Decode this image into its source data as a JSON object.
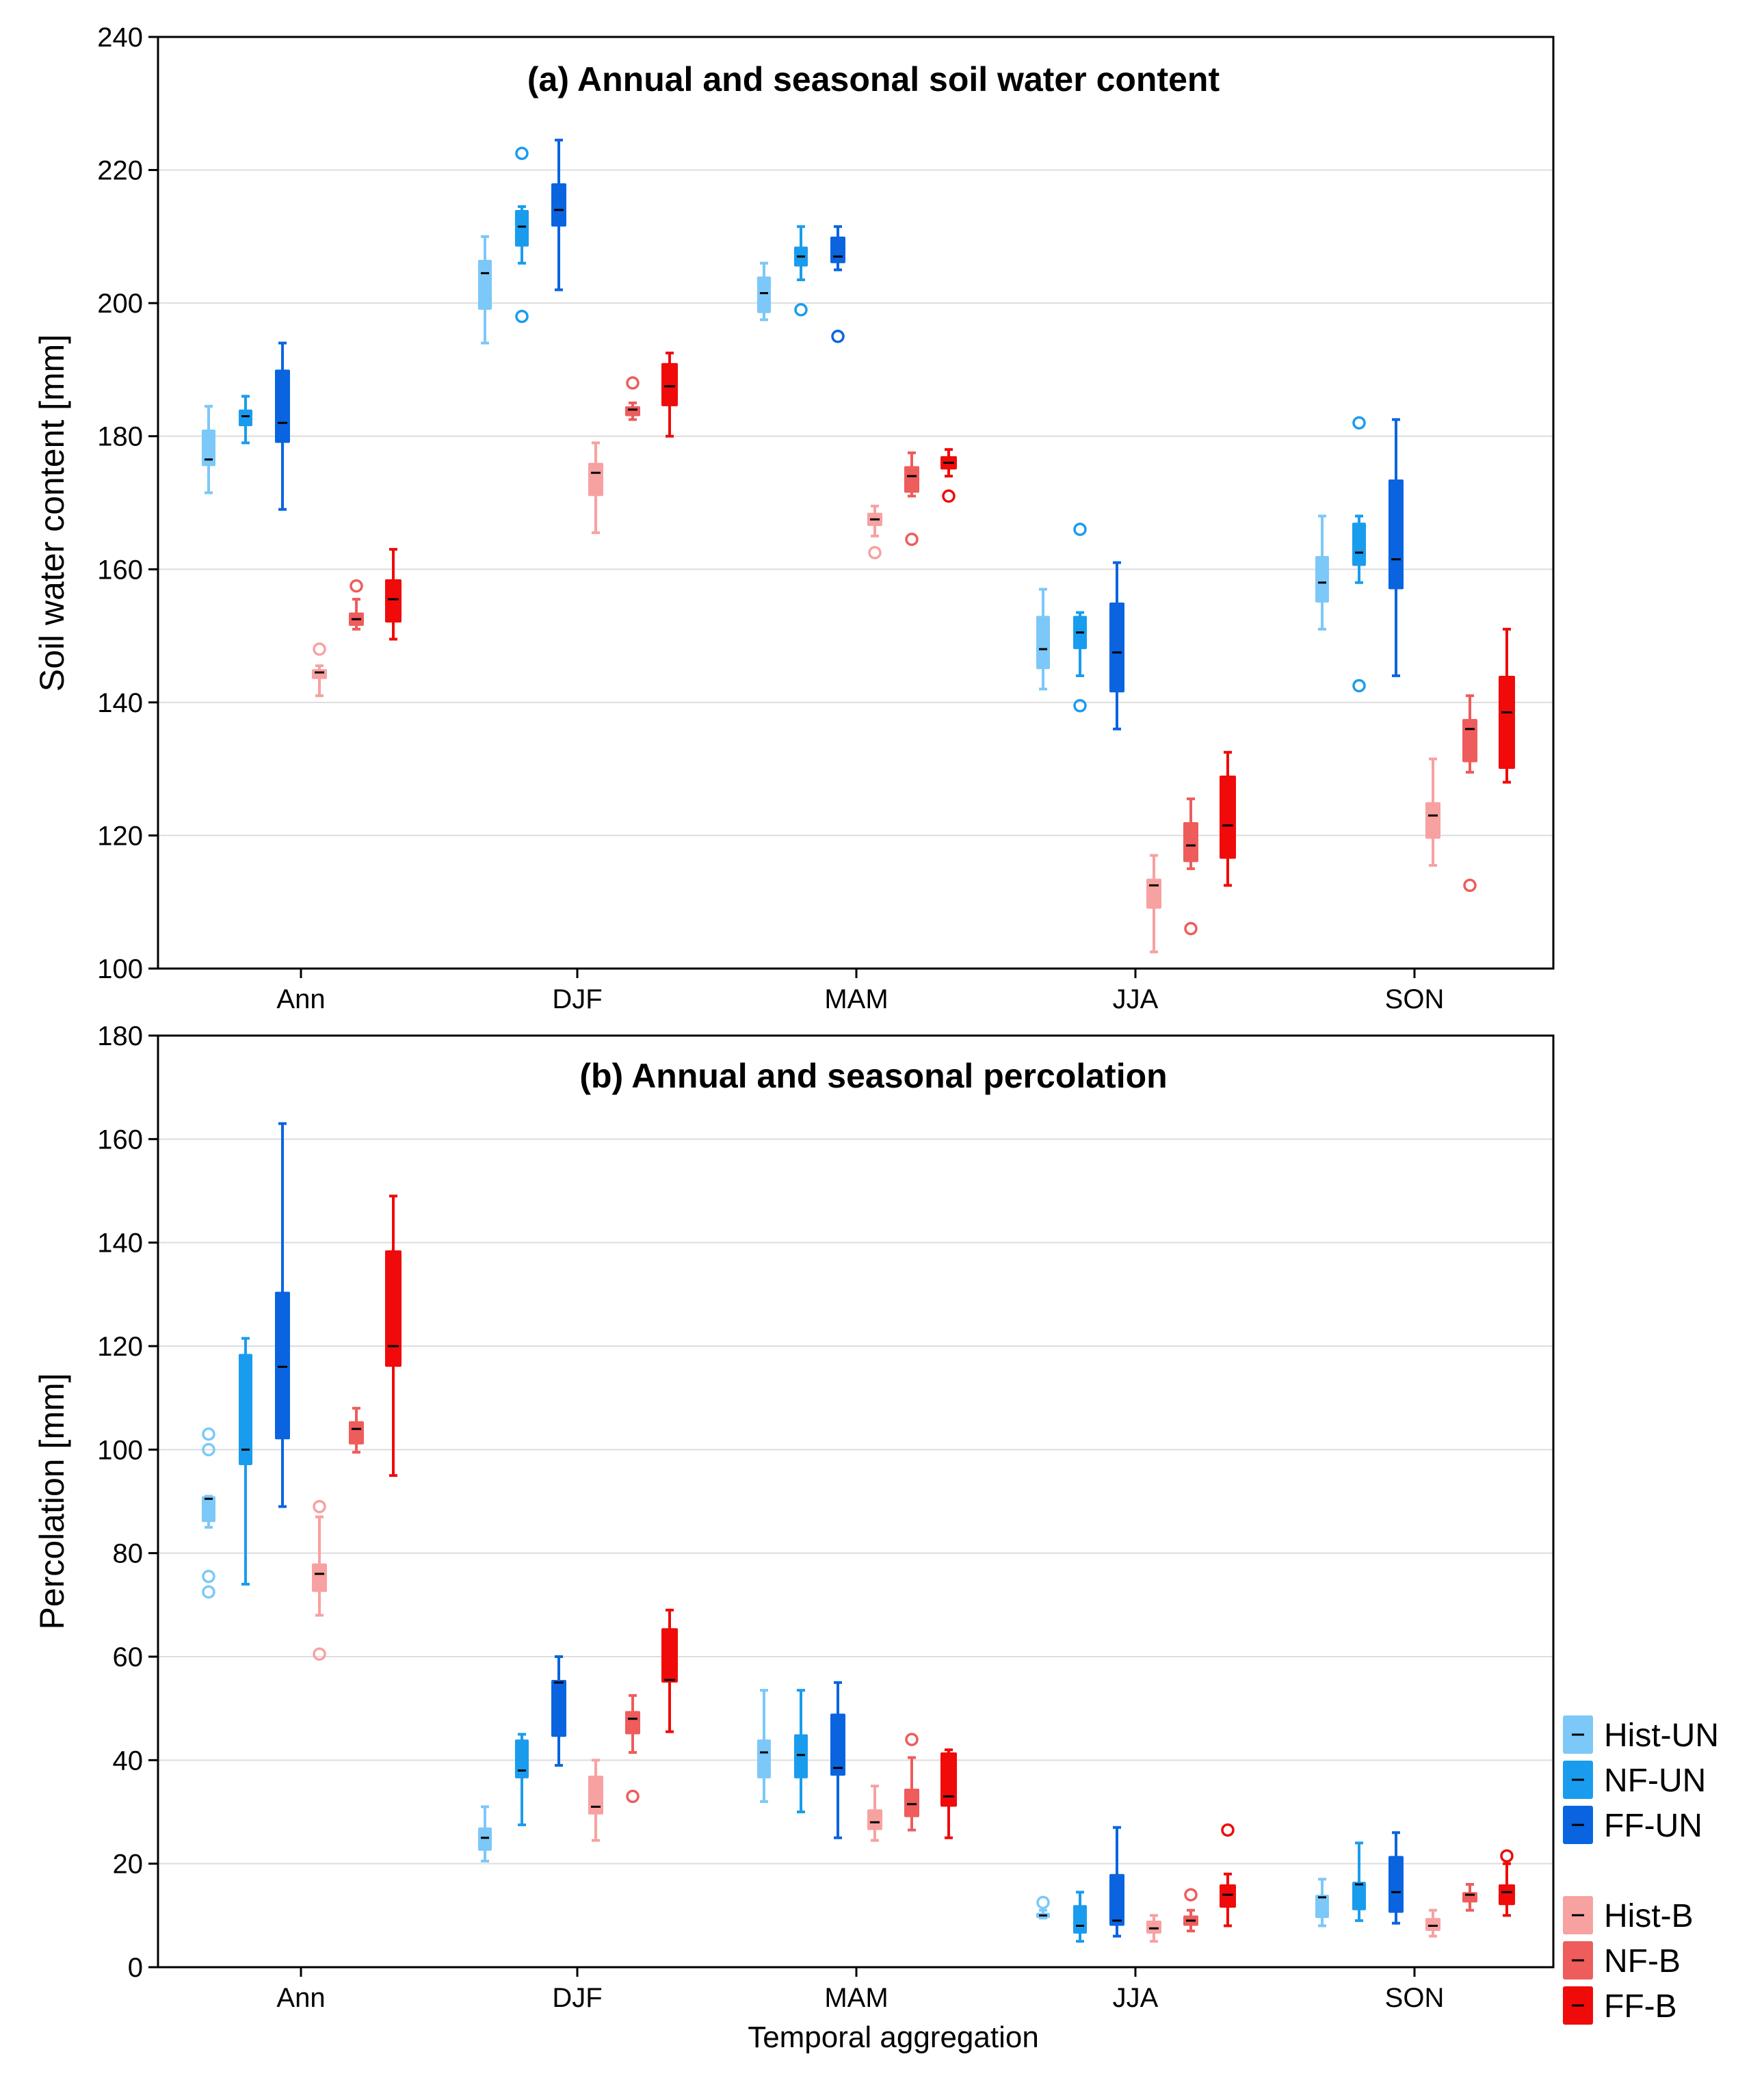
{
  "chart_data": [
    {
      "type": "box",
      "id": "a",
      "title": "(a) Annual and seasonal soil water content",
      "ylabel": "Soil water content [mm]",
      "xlabel": "",
      "ylim": [
        100,
        240
      ],
      "yticks": [
        100,
        120,
        140,
        160,
        180,
        200,
        220,
        240
      ],
      "grid": true,
      "categories": [
        "Ann",
        "DJF",
        "MAM",
        "JJA",
        "SON"
      ],
      "series": [
        {
          "name": "Hist-UN",
          "boxes": [
            {
              "q1": 175.5,
              "median": 176.5,
              "q3": 181,
              "min": 171.5,
              "max": 184.5,
              "outliers": []
            },
            {
              "q1": 199,
              "median": 204.5,
              "q3": 206.5,
              "min": 194,
              "max": 210,
              "outliers": []
            },
            {
              "q1": 198.5,
              "median": 201.5,
              "q3": 204,
              "min": 197.5,
              "max": 206,
              "outliers": []
            },
            {
              "q1": 145,
              "median": 148,
              "q3": 153,
              "min": 142,
              "max": 157,
              "outliers": []
            },
            {
              "q1": 155,
              "median": 158,
              "q3": 162,
              "min": 151,
              "max": 168,
              "outliers": []
            }
          ]
        },
        {
          "name": "NF-UN",
          "boxes": [
            {
              "q1": 181.5,
              "median": 183,
              "q3": 184,
              "min": 179,
              "max": 186,
              "outliers": []
            },
            {
              "q1": 208.5,
              "median": 211.5,
              "q3": 214,
              "min": 206,
              "max": 214.5,
              "outliers": [
                222.5,
                198
              ]
            },
            {
              "q1": 205.5,
              "median": 207,
              "q3": 208.5,
              "min": 203.5,
              "max": 211.5,
              "outliers": [
                199
              ]
            },
            {
              "q1": 148,
              "median": 150.5,
              "q3": 153,
              "min": 144,
              "max": 153.5,
              "outliers": [
                166,
                139.5
              ]
            },
            {
              "q1": 160.5,
              "median": 162.5,
              "q3": 167,
              "min": 158,
              "max": 168,
              "outliers": [
                182,
                142.5
              ]
            }
          ]
        },
        {
          "name": "FF-UN",
          "boxes": [
            {
              "q1": 179,
              "median": 182,
              "q3": 190,
              "min": 169,
              "max": 194,
              "outliers": []
            },
            {
              "q1": 211.5,
              "median": 214,
              "q3": 218,
              "min": 202,
              "max": 224.5,
              "outliers": []
            },
            {
              "q1": 206,
              "median": 207,
              "q3": 210,
              "min": 205,
              "max": 211.5,
              "outliers": [
                195
              ]
            },
            {
              "q1": 141.5,
              "median": 147.5,
              "q3": 155,
              "min": 136,
              "max": 161,
              "outliers": []
            },
            {
              "q1": 157,
              "median": 161.5,
              "q3": 173.5,
              "min": 144,
              "max": 182.5,
              "outliers": []
            }
          ]
        },
        {
          "name": "Hist-B",
          "boxes": [
            {
              "q1": 143.5,
              "median": 144.5,
              "q3": 145,
              "min": 141,
              "max": 145.5,
              "outliers": [
                148
              ]
            },
            {
              "q1": 171,
              "median": 174.5,
              "q3": 176,
              "min": 165.5,
              "max": 179,
              "outliers": []
            },
            {
              "q1": 166.5,
              "median": 167.5,
              "q3": 168.5,
              "min": 165,
              "max": 169.5,
              "outliers": [
                162.5
              ]
            },
            {
              "q1": 109,
              "median": 112.5,
              "q3": 113.5,
              "min": 102.5,
              "max": 117,
              "outliers": []
            },
            {
              "q1": 119.5,
              "median": 123,
              "q3": 125,
              "min": 115.5,
              "max": 131.5,
              "outliers": []
            }
          ]
        },
        {
          "name": "NF-B",
          "boxes": [
            {
              "q1": 151.5,
              "median": 152.5,
              "q3": 153.5,
              "min": 151,
              "max": 155.5,
              "outliers": [
                157.5
              ]
            },
            {
              "q1": 183,
              "median": 184,
              "q3": 184.5,
              "min": 182.5,
              "max": 185,
              "outliers": [
                188
              ]
            },
            {
              "q1": 171.5,
              "median": 174,
              "q3": 175.5,
              "min": 171,
              "max": 177.5,
              "outliers": [
                164.5
              ]
            },
            {
              "q1": 116,
              "median": 118.5,
              "q3": 122,
              "min": 115,
              "max": 125.5,
              "outliers": [
                106
              ]
            },
            {
              "q1": 131,
              "median": 136,
              "q3": 137.5,
              "min": 129.5,
              "max": 141,
              "outliers": [
                112.5
              ]
            }
          ]
        },
        {
          "name": "FF-B",
          "boxes": [
            {
              "q1": 152,
              "median": 155.5,
              "q3": 158.5,
              "min": 149.5,
              "max": 163,
              "outliers": []
            },
            {
              "q1": 184.5,
              "median": 187.5,
              "q3": 191,
              "min": 180,
              "max": 192.5,
              "outliers": []
            },
            {
              "q1": 175,
              "median": 176,
              "q3": 177,
              "min": 174,
              "max": 178,
              "outliers": [
                171
              ]
            },
            {
              "q1": 116.5,
              "median": 121.5,
              "q3": 129,
              "min": 112.5,
              "max": 132.5,
              "outliers": []
            },
            {
              "q1": 130,
              "median": 138.5,
              "q3": 144,
              "min": 128,
              "max": 151,
              "outliers": []
            }
          ]
        }
      ]
    },
    {
      "type": "box",
      "id": "b",
      "title": "(b) Annual and seasonal percolation",
      "ylabel": "Percolation [mm]",
      "xlabel": "Temporal aggregation",
      "ylim": [
        0,
        180
      ],
      "yticks": [
        0,
        20,
        40,
        60,
        80,
        100,
        120,
        140,
        160,
        180
      ],
      "grid": true,
      "categories": [
        "Ann",
        "DJF",
        "MAM",
        "JJA",
        "SON"
      ],
      "series": [
        {
          "name": "Hist-UN",
          "boxes": [
            {
              "q1": 86,
              "median": 90.5,
              "q3": 91,
              "min": 85,
              "max": 91,
              "outliers": [
                103,
                100,
                75.5,
                72.5
              ]
            },
            {
              "q1": 22.5,
              "median": 25,
              "q3": 27,
              "min": 20.5,
              "max": 31,
              "outliers": []
            },
            {
              "q1": 36.5,
              "median": 41.5,
              "q3": 44,
              "min": 32,
              "max": 53.5,
              "outliers": []
            },
            {
              "q1": 9.5,
              "median": 10,
              "q3": 10.5,
              "min": 9.5,
              "max": 11,
              "outliers": [
                12.5
              ]
            },
            {
              "q1": 9.5,
              "median": 13.5,
              "q3": 14,
              "min": 8,
              "max": 17,
              "outliers": []
            }
          ]
        },
        {
          "name": "NF-UN",
          "boxes": [
            {
              "q1": 97,
              "median": 100,
              "q3": 118.5,
              "min": 74,
              "max": 121.5,
              "outliers": []
            },
            {
              "q1": 36.5,
              "median": 38,
              "q3": 44,
              "min": 27.5,
              "max": 45,
              "outliers": []
            },
            {
              "q1": 36.5,
              "median": 41,
              "q3": 45,
              "min": 30,
              "max": 53.5,
              "outliers": []
            },
            {
              "q1": 6.5,
              "median": 8,
              "q3": 12,
              "min": 5,
              "max": 14.5,
              "outliers": []
            },
            {
              "q1": 11,
              "median": 16,
              "q3": 16.5,
              "min": 9,
              "max": 24,
              "outliers": []
            }
          ]
        },
        {
          "name": "FF-UN",
          "boxes": [
            {
              "q1": 102,
              "median": 116,
              "q3": 130.5,
              "min": 89,
              "max": 163,
              "outliers": []
            },
            {
              "q1": 44.5,
              "median": 55,
              "q3": 55.5,
              "min": 39,
              "max": 60,
              "outliers": []
            },
            {
              "q1": 37,
              "median": 38.5,
              "q3": 49,
              "min": 25,
              "max": 55,
              "outliers": []
            },
            {
              "q1": 8,
              "median": 9,
              "q3": 18,
              "min": 6,
              "max": 27,
              "outliers": []
            },
            {
              "q1": 10.5,
              "median": 14.5,
              "q3": 21.5,
              "min": 8.5,
              "max": 26,
              "outliers": []
            }
          ]
        },
        {
          "name": "Hist-B",
          "boxes": [
            {
              "q1": 72.5,
              "median": 76,
              "q3": 78,
              "min": 68,
              "max": 87,
              "outliers": [
                89,
                60.5
              ]
            },
            {
              "q1": 29.5,
              "median": 31,
              "q3": 37,
              "min": 24.5,
              "max": 40,
              "outliers": []
            },
            {
              "q1": 26.5,
              "median": 28,
              "q3": 30.5,
              "min": 24.5,
              "max": 35,
              "outliers": []
            },
            {
              "q1": 6.5,
              "median": 7.5,
              "q3": 9,
              "min": 5,
              "max": 10,
              "outliers": []
            },
            {
              "q1": 7,
              "median": 8,
              "q3": 9.5,
              "min": 6,
              "max": 11,
              "outliers": []
            }
          ]
        },
        {
          "name": "NF-B",
          "boxes": [
            {
              "q1": 101,
              "median": 104,
              "q3": 105.5,
              "min": 99.5,
              "max": 108,
              "outliers": []
            },
            {
              "q1": 45,
              "median": 48,
              "q3": 49.5,
              "min": 41.5,
              "max": 52.5,
              "outliers": [
                33
              ]
            },
            {
              "q1": 29,
              "median": 31.5,
              "q3": 34.5,
              "min": 26.5,
              "max": 40.5,
              "outliers": [
                44
              ]
            },
            {
              "q1": 8,
              "median": 9,
              "q3": 10,
              "min": 7,
              "max": 11,
              "outliers": [
                14
              ]
            },
            {
              "q1": 12.5,
              "median": 14,
              "q3": 14.5,
              "min": 11,
              "max": 16,
              "outliers": []
            }
          ]
        },
        {
          "name": "FF-B",
          "boxes": [
            {
              "q1": 116,
              "median": 120,
              "q3": 138.5,
              "min": 95,
              "max": 149,
              "outliers": []
            },
            {
              "q1": 55,
              "median": 55.5,
              "q3": 65.5,
              "min": 45.5,
              "max": 69,
              "outliers": []
            },
            {
              "q1": 31,
              "median": 33,
              "q3": 41.5,
              "min": 25,
              "max": 42,
              "outliers": []
            },
            {
              "q1": 11.5,
              "median": 14,
              "q3": 16,
              "min": 8,
              "max": 18,
              "outliers": [
                26.5
              ]
            },
            {
              "q1": 12,
              "median": 14.5,
              "q3": 16,
              "min": 10,
              "max": 20,
              "outliers": [
                21.5
              ]
            }
          ]
        }
      ]
    }
  ],
  "legend": {
    "placement": "bottom-right",
    "groups": [
      [
        "Hist-UN",
        "NF-UN",
        "FF-UN"
      ],
      [
        "Hist-B",
        "NF-B",
        "FF-B"
      ]
    ]
  },
  "colors": {
    "Hist-UN": "#7cc8f8",
    "NF-UN": "#1a9cee",
    "FF-UN": "#0a64e0",
    "Hist-B": "#f7a1a1",
    "NF-B": "#ee5c5c",
    "FF-B": "#f00a0a",
    "grid": "#dddddd",
    "axis": "#000000",
    "median": "#000000"
  }
}
